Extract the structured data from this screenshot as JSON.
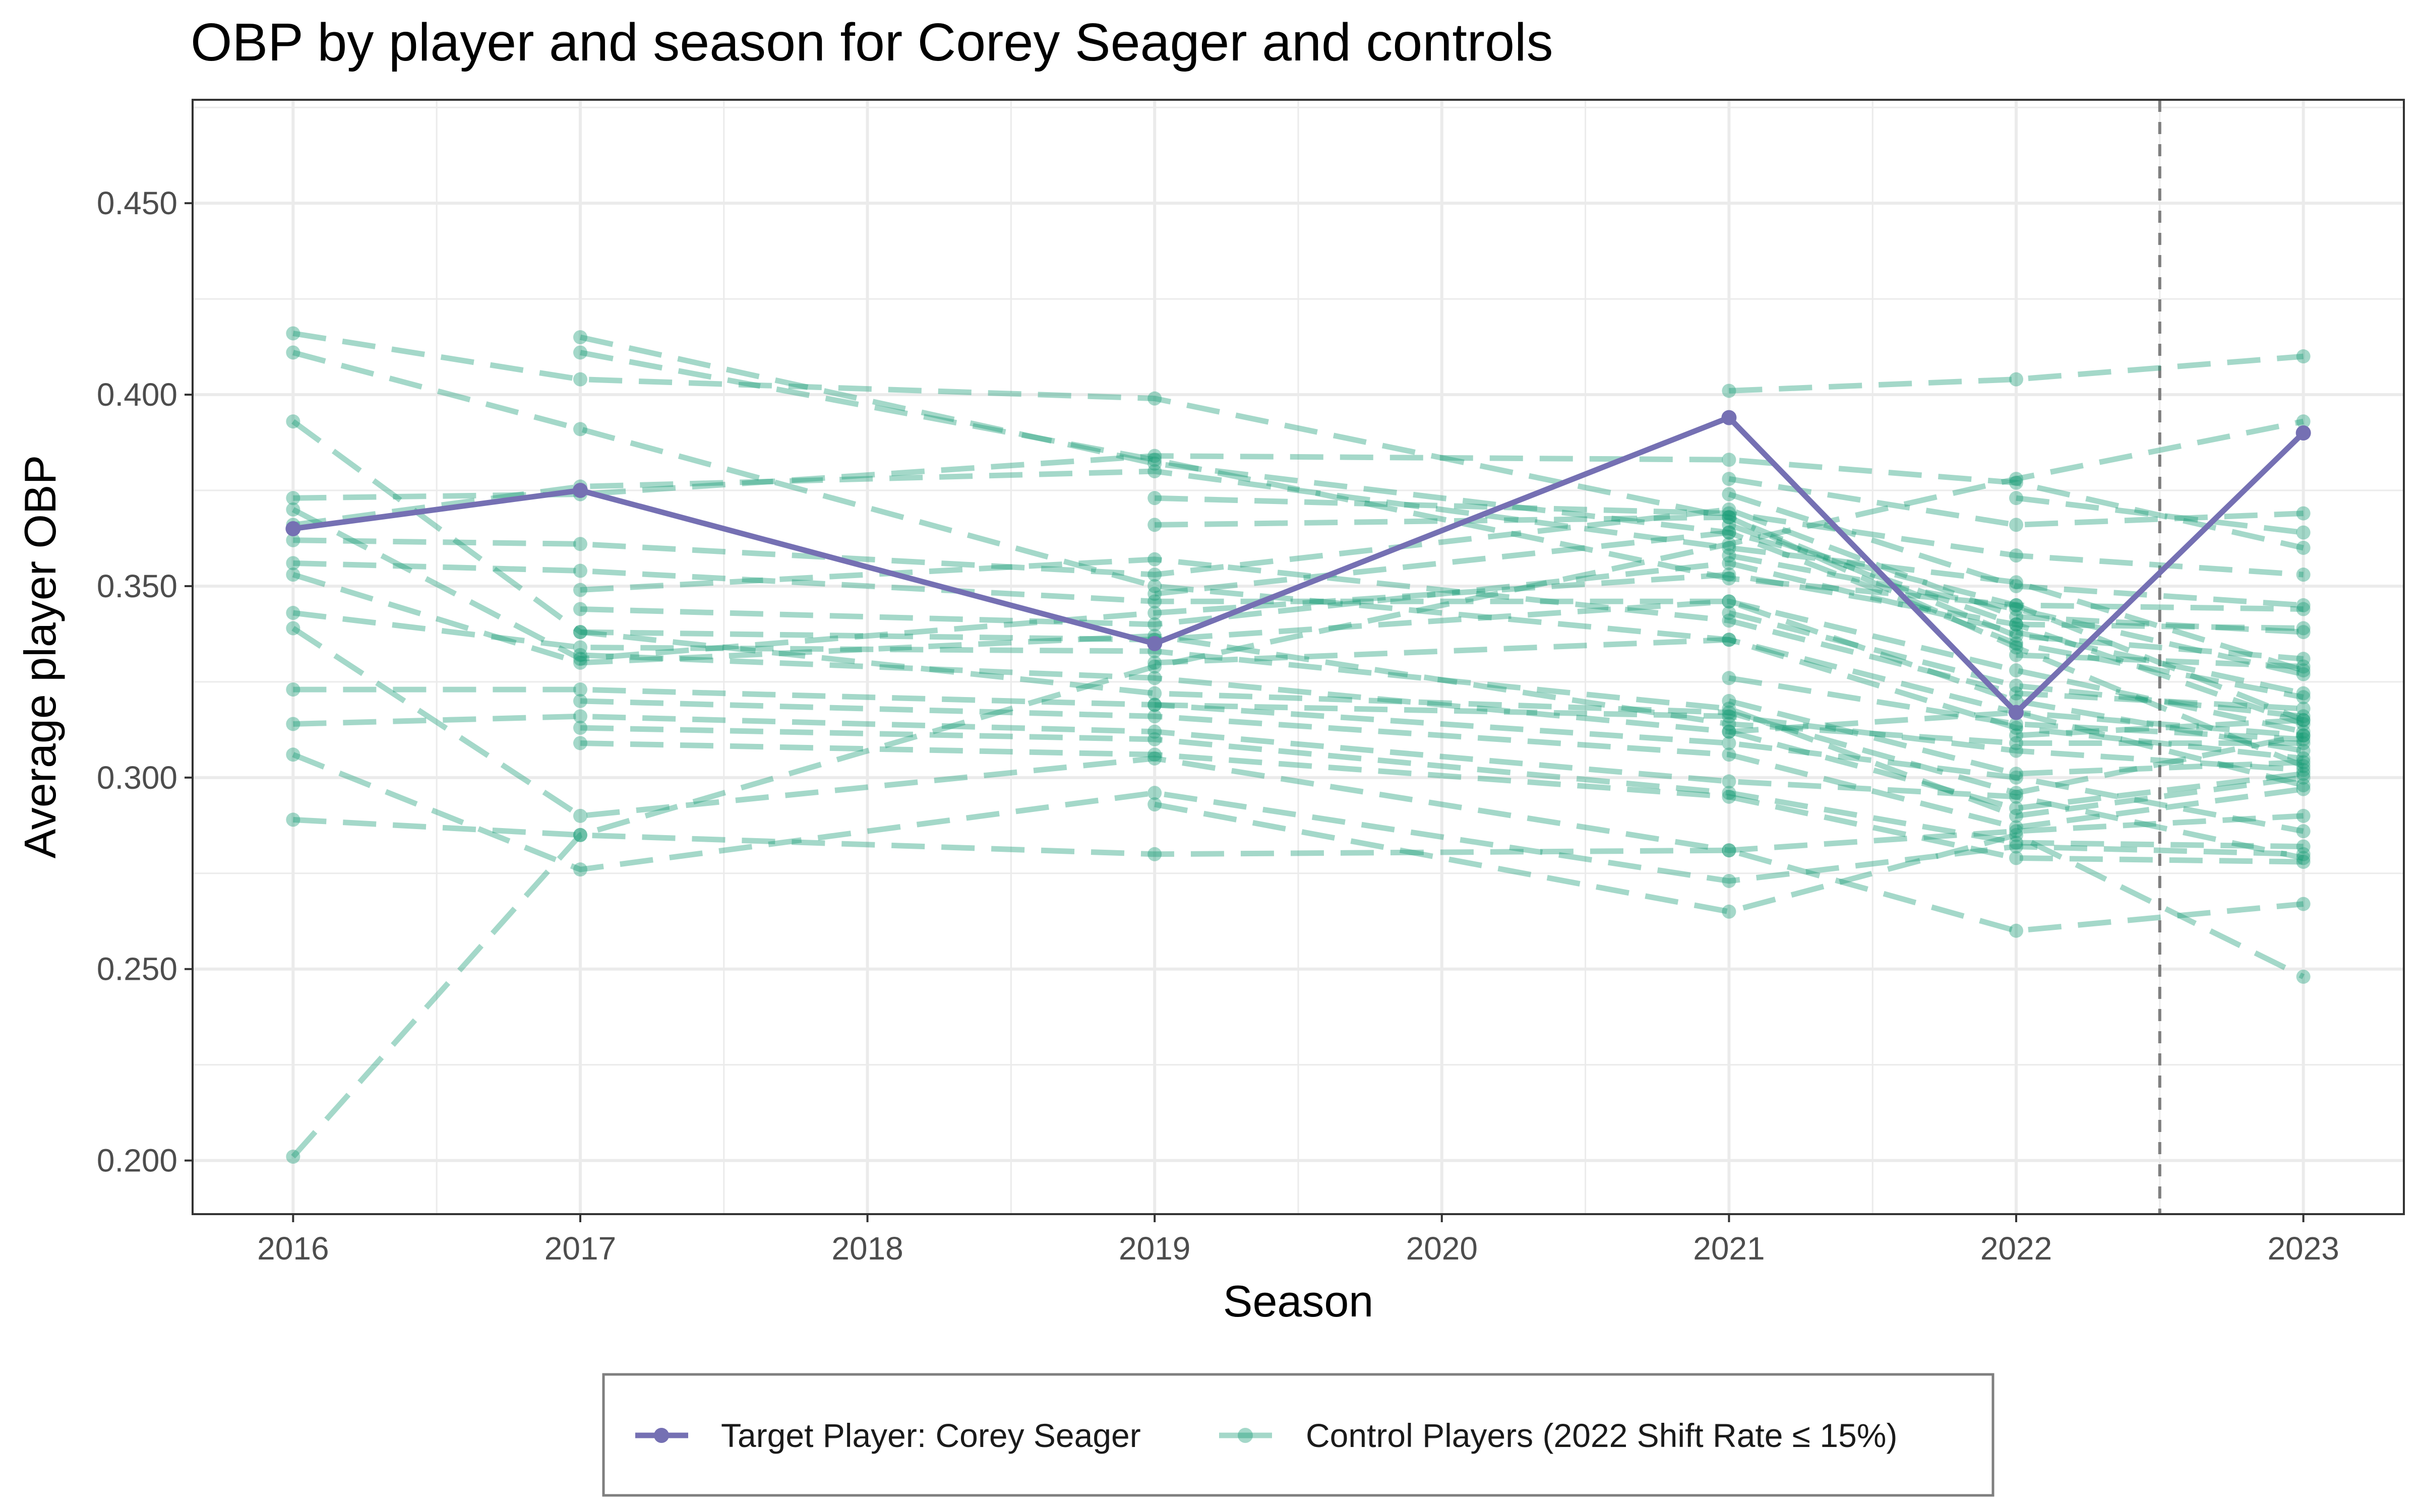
{
  "chart_data": {
    "type": "line",
    "title": "OBP by player and season for Corey Seager and controls",
    "xlabel": "Season",
    "ylabel": "Average player OBP",
    "x_ticks": [
      "2016",
      "2017",
      "2018",
      "2019",
      "2020",
      "2021",
      "2022",
      "2023"
    ],
    "y_ticks": [
      "0.200",
      "0.250",
      "0.300",
      "0.350",
      "0.400",
      "0.450"
    ],
    "xlim": [
      2015.65,
      2023.35
    ],
    "ylim": [
      0.186,
      0.477
    ],
    "grid": true,
    "reference_line": {
      "x": 2022.5,
      "style": "dashed",
      "color": "#7f7f7f"
    },
    "legend_position": "bottom",
    "colors": {
      "target": "#7570b3",
      "control": "#1b9e77",
      "panel_border": "#333333",
      "grid": "#ebebeb"
    },
    "legend": {
      "target_label": "Target Player: Corey Seager",
      "control_label": "Control Players (2022 Shift Rate ≤ 15%)"
    },
    "series": [
      {
        "name": "Target Player: Corey Seager",
        "group": "target",
        "x": [
          2016,
          2017,
          2019,
          2021,
          2022,
          2023
        ],
        "y": [
          0.365,
          0.375,
          0.335,
          0.394,
          0.317,
          0.39
        ]
      },
      {
        "group": "control",
        "x": [
          2016,
          2017,
          2019,
          2021,
          2022,
          2023
        ],
        "y": [
          0.416,
          0.404,
          0.399,
          0.368,
          0.334,
          0.303
        ]
      },
      {
        "group": "control",
        "x": [
          2016,
          2017,
          2019,
          2021,
          2022,
          2023
        ],
        "y": [
          0.411,
          0.391,
          0.35,
          0.336,
          0.317,
          0.311
        ]
      },
      {
        "group": "control",
        "x": [
          2016,
          2017,
          2019,
          2021,
          2022,
          2023
        ],
        "y": [
          0.393,
          0.338,
          0.322,
          0.317,
          0.296,
          0.311
        ]
      },
      {
        "group": "control",
        "x": [
          2016,
          2017,
          2019,
          2021,
          2022,
          2023
        ],
        "y": [
          0.373,
          0.374,
          0.384,
          0.383,
          0.377,
          0.36
        ]
      },
      {
        "group": "control",
        "x": [
          2016,
          2017,
          2019,
          2021,
          2022,
          2023
        ],
        "y": [
          0.37,
          0.331,
          0.343,
          0.353,
          0.34,
          0.314
        ]
      },
      {
        "group": "control",
        "x": [
          2016,
          2017,
          2019,
          2021,
          2022,
          2023
        ],
        "y": [
          0.366,
          0.376,
          0.38,
          0.36,
          0.351,
          0.328
        ]
      },
      {
        "group": "control",
        "x": [
          2016,
          2017,
          2019,
          2021,
          2022,
          2023
        ],
        "y": [
          0.362,
          0.361,
          0.353,
          0.37,
          0.342,
          0.338
        ]
      },
      {
        "group": "control",
        "x": [
          2016,
          2017,
          2019,
          2021,
          2022,
          2023
        ],
        "y": [
          0.356,
          0.354,
          0.346,
          0.346,
          0.32,
          0.307
        ]
      },
      {
        "group": "control",
        "x": [
          2016,
          2017,
          2019,
          2021,
          2022,
          2023
        ],
        "y": [
          0.353,
          0.33,
          0.337,
          0.314,
          0.309,
          0.309
        ]
      },
      {
        "group": "control",
        "x": [
          2016,
          2017,
          2019,
          2021,
          2022,
          2023
        ],
        "y": [
          0.343,
          0.334,
          0.333,
          0.318,
          0.29,
          0.3
        ]
      },
      {
        "group": "control",
        "x": [
          2016,
          2017,
          2019,
          2021,
          2022,
          2023
        ],
        "y": [
          0.339,
          0.29,
          0.305,
          0.281,
          0.286,
          0.29
        ]
      },
      {
        "group": "control",
        "x": [
          2016,
          2017,
          2019,
          2021,
          2022,
          2023
        ],
        "y": [
          0.323,
          0.323,
          0.319,
          0.309,
          0.3,
          0.286
        ]
      },
      {
        "group": "control",
        "x": [
          2016,
          2017,
          2019,
          2021,
          2022,
          2023
        ],
        "y": [
          0.314,
          0.316,
          0.312,
          0.299,
          0.295,
          0.279
        ]
      },
      {
        "group": "control",
        "x": [
          2016,
          2017,
          2019,
          2021,
          2022,
          2023
        ],
        "y": [
          0.306,
          0.276,
          0.296,
          0.273,
          0.282,
          0.28
        ]
      },
      {
        "group": "control",
        "x": [
          2016,
          2017,
          2019,
          2021,
          2022,
          2023
        ],
        "y": [
          0.289,
          0.285,
          0.28,
          0.281,
          0.26,
          0.267
        ]
      },
      {
        "group": "control",
        "x": [
          2016,
          2017,
          2019,
          2021,
          2022,
          2023
        ],
        "y": [
          0.201,
          0.285,
          0.329,
          0.361,
          0.378,
          0.393
        ]
      },
      {
        "group": "control",
        "x": [
          2017,
          2019,
          2021,
          2022,
          2023
        ],
        "y": [
          0.415,
          0.382,
          0.364,
          0.335,
          0.321
        ]
      },
      {
        "group": "control",
        "x": [
          2017,
          2019,
          2021,
          2022,
          2023
        ],
        "y": [
          0.411,
          0.383,
          0.352,
          0.345,
          0.315
        ]
      },
      {
        "group": "control",
        "x": [
          2017,
          2019,
          2021,
          2022,
          2023
        ],
        "y": [
          0.349,
          0.357,
          0.341,
          0.322,
          0.318
        ]
      },
      {
        "group": "control",
        "x": [
          2017,
          2019,
          2021,
          2022,
          2023
        ],
        "y": [
          0.344,
          0.34,
          0.356,
          0.338,
          0.322
        ]
      },
      {
        "group": "control",
        "x": [
          2017,
          2019,
          2021,
          2022,
          2023
        ],
        "y": [
          0.338,
          0.336,
          0.346,
          0.328,
          0.312
        ]
      },
      {
        "group": "control",
        "x": [
          2017,
          2019,
          2021,
          2022,
          2023
        ],
        "y": [
          0.332,
          0.326,
          0.312,
          0.317,
          0.298
        ]
      },
      {
        "group": "control",
        "x": [
          2017,
          2019,
          2021,
          2022,
          2023
        ],
        "y": [
          0.32,
          0.316,
          0.306,
          0.287,
          0.297
        ]
      },
      {
        "group": "control",
        "x": [
          2017,
          2019,
          2021,
          2022,
          2023
        ],
        "y": [
          0.313,
          0.31,
          0.296,
          0.283,
          0.282
        ]
      },
      {
        "group": "control",
        "x": [
          2017,
          2019,
          2021,
          2022,
          2023
        ],
        "y": [
          0.309,
          0.306,
          0.295,
          0.279,
          0.278
        ]
      },
      {
        "group": "control",
        "x": [
          2019,
          2021,
          2022,
          2023
        ],
        "y": [
          0.373,
          0.369,
          0.358,
          0.353
        ]
      },
      {
        "group": "control",
        "x": [
          2019,
          2021,
          2022,
          2023
        ],
        "y": [
          0.366,
          0.368,
          0.337,
          0.331
        ]
      },
      {
        "group": "control",
        "x": [
          2019,
          2021,
          2022,
          2023
        ],
        "y": [
          0.348,
          0.364,
          0.345,
          0.344
        ]
      },
      {
        "group": "control",
        "x": [
          2019,
          2021,
          2022,
          2023
        ],
        "y": [
          0.33,
          0.336,
          0.313,
          0.305
        ]
      },
      {
        "group": "control",
        "x": [
          2019,
          2021,
          2022,
          2023
        ],
        "y": [
          0.319,
          0.316,
          0.307,
          0.302
        ]
      },
      {
        "group": "control",
        "x": [
          2019,
          2021,
          2022,
          2023
        ],
        "y": [
          0.293,
          0.265,
          0.285,
          0.248
        ]
      },
      {
        "group": "control",
        "x": [
          2021,
          2022,
          2023
        ],
        "y": [
          0.401,
          0.404,
          0.41
        ]
      },
      {
        "group": "control",
        "x": [
          2021,
          2022,
          2023
        ],
        "y": [
          0.378,
          0.366,
          0.369
        ]
      },
      {
        "group": "control",
        "x": [
          2021,
          2022,
          2023
        ],
        "y": [
          0.374,
          0.35,
          0.345
        ]
      },
      {
        "group": "control",
        "x": [
          2021,
          2022,
          2023
        ],
        "y": [
          0.366,
          0.34,
          0.339
        ]
      },
      {
        "group": "control",
        "x": [
          2021,
          2022,
          2023
        ],
        "y": [
          0.358,
          0.344,
          0.327
        ]
      },
      {
        "group": "control",
        "x": [
          2021,
          2022,
          2023
        ],
        "y": [
          0.343,
          0.324,
          0.316
        ]
      },
      {
        "group": "control",
        "x": [
          2021,
          2022,
          2023
        ],
        "y": [
          0.326,
          0.314,
          0.31
        ]
      },
      {
        "group": "control",
        "x": [
          2021,
          2022,
          2023
        ],
        "y": [
          0.32,
          0.301,
          0.304
        ]
      },
      {
        "group": "control",
        "x": [
          2021,
          2022,
          2023
        ],
        "y": [
          0.312,
          0.292,
          0.301
        ]
      },
      {
        "group": "control",
        "x": [
          2022,
          2023
        ],
        "y": [
          0.373,
          0.364
        ]
      },
      {
        "group": "control",
        "x": [
          2022,
          2023
        ],
        "y": [
          0.332,
          0.329
        ]
      },
      {
        "group": "control",
        "x": [
          2022,
          2023
        ],
        "y": [
          0.311,
          0.315
        ]
      }
    ]
  }
}
